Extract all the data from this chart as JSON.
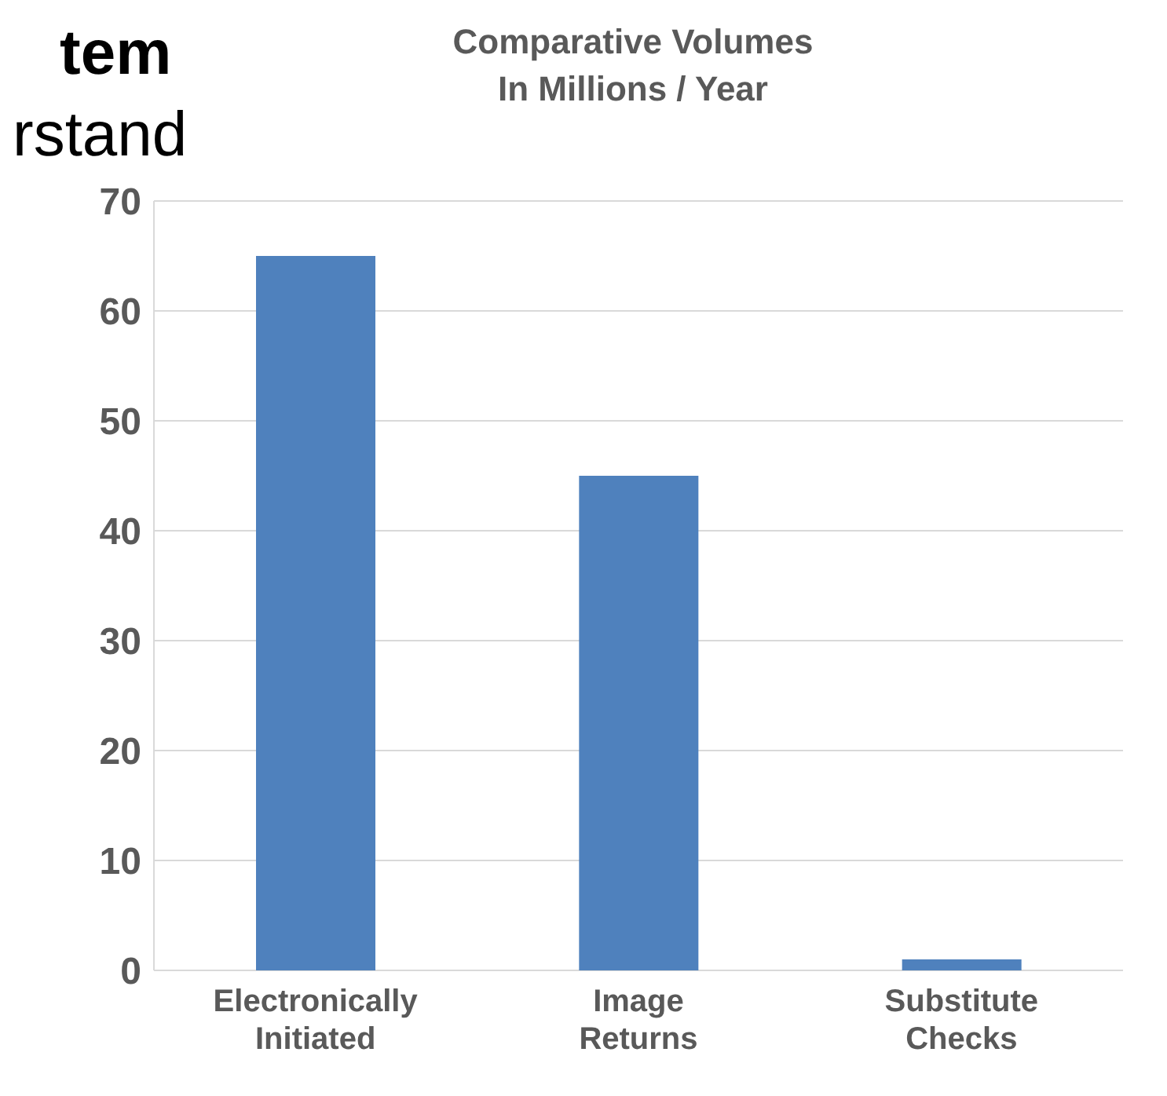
{
  "chart_data": {
    "type": "bar",
    "title": "Comparative Volumes",
    "subtitle": "In Millions / Year",
    "annotations": [
      "tem",
      "rstand"
    ],
    "categories": [
      "Electronically Initiated",
      "Image Returns",
      "Substitute Checks"
    ],
    "values": [
      65,
      45,
      1
    ],
    "color": "#4f81bd",
    "ylim": [
      0,
      70
    ],
    "yticks": [
      0,
      10,
      20,
      30,
      40,
      50,
      60,
      70
    ],
    "grid": "y"
  }
}
